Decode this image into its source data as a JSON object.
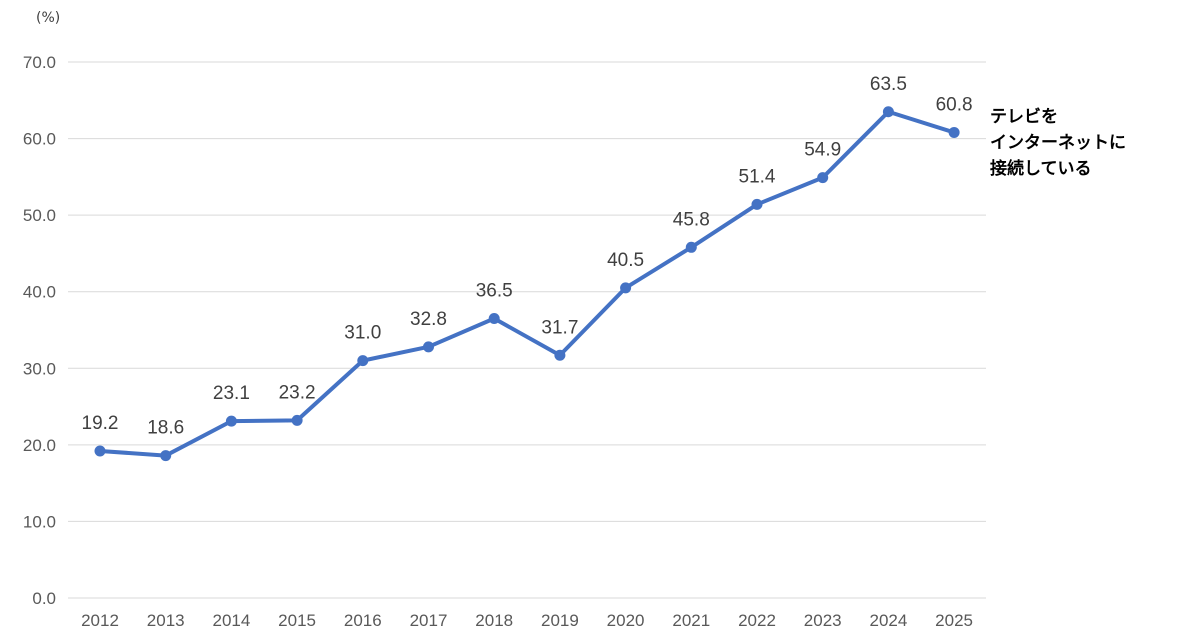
{
  "chart_data": {
    "type": "line",
    "y_unit": "(%)",
    "ylim": [
      0,
      70
    ],
    "y_ticks": [
      "0.0",
      "10.0",
      "20.0",
      "30.0",
      "40.0",
      "50.0",
      "60.0",
      "70.0"
    ],
    "grid": true,
    "categories": [
      "2012",
      "2013",
      "2014",
      "2015",
      "2016",
      "2017",
      "2018",
      "2019",
      "2020",
      "2021",
      "2022",
      "2023",
      "2024",
      "2025"
    ],
    "series": [
      {
        "name_lines": [
          "テレビを",
          "インターネットに",
          "接続している"
        ],
        "color": "#4472c4",
        "values": [
          19.2,
          18.6,
          23.1,
          23.2,
          31.0,
          32.8,
          36.5,
          31.7,
          40.5,
          45.8,
          51.4,
          54.9,
          63.5,
          60.8
        ],
        "labels": [
          "19.2",
          "18.6",
          "23.1",
          "23.2",
          "31.0",
          "32.8",
          "36.5",
          "31.7",
          "40.5",
          "45.8",
          "51.4",
          "54.9",
          "63.5",
          "60.8"
        ]
      }
    ]
  }
}
